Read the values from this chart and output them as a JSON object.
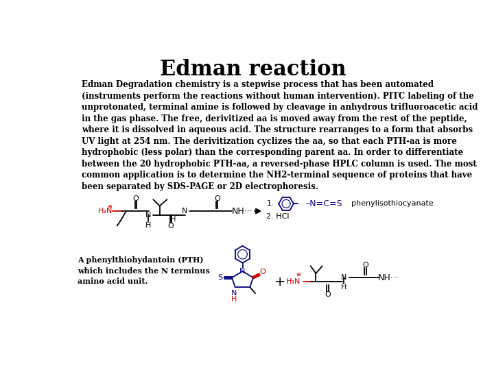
{
  "title": "Edman reaction",
  "title_fontsize": 22,
  "body_text": "Edman Degradation chemistry is a stepwise process that has been automated\n(instruments perform the reactions without human intervention). PITC labeling of the\nunprotonated, terminal amine is followed by cleavage in anhydrous trifluoroacetic acid\nin the gas phase. The free, derivitized aa is moved away from the rest of the peptide,\nwhere it is dissolved in aqueous acid. The structure rearranges to a form that absorbs\nUV light at 254 nm. The derivitization cyclizes the aa, so that each PTH-aa is more\nhydrophobic (less polar) than the corresponding parent aa. In order to differentiate\nbetween the 20 hydrophobic PTH-aa, a reversed-phase HPLC column is used. The most\ncommon application is to determine the NH2-terminal sequence of proteins that have\nbeen separated by SDS-PAGE or 2D electrophoresis.",
  "body_fontsize": 8.5,
  "pth_text": "A phenylthiohydantoin (PTH)\nwhich includes the N terminus\namino acid unit.",
  "pth_fontsize": 8.0,
  "background_color": "#ffffff",
  "text_color": "#000000",
  "red": "#cc0000",
  "blue": "#00007f",
  "black": "#000000"
}
